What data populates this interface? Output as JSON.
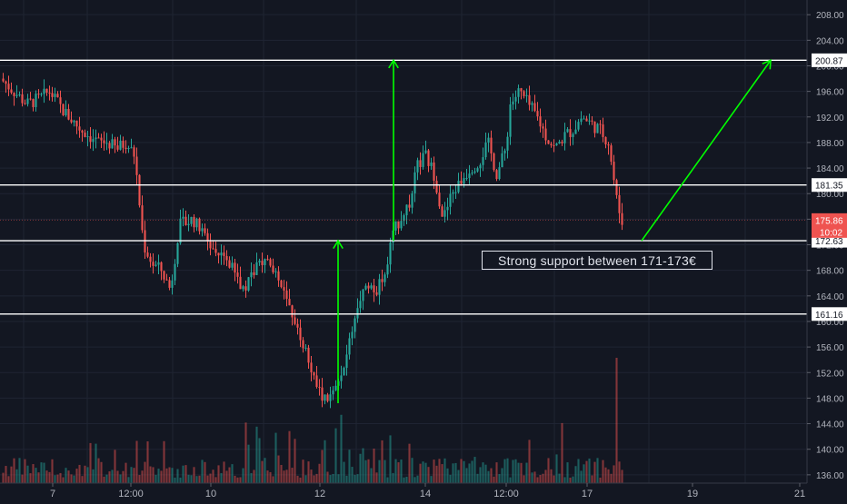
{
  "chart_data": {
    "type": "candlestick",
    "instrument_price_axis": {
      "ticks": [
        136,
        140,
        144,
        148,
        152,
        156,
        160,
        164,
        168,
        172,
        176,
        180,
        184,
        188,
        192,
        196,
        200,
        204,
        208
      ],
      "range": [
        134.7,
        210.3
      ]
    },
    "x_ticks": [
      "7",
      "12:00",
      "10",
      "12",
      "14",
      "12:00",
      "17",
      "19",
      "21"
    ],
    "horizontal_levels": [
      200.87,
      181.35,
      172.63,
      161.16
    ],
    "last_price": 175.86,
    "countdown": "10:02",
    "annotation": "Strong support between 171-173€",
    "colors": {
      "up": "#26a69a",
      "down": "#ef5350",
      "bg": "#131722",
      "level_line": "#ffffff",
      "arrow": "#00ff00",
      "price_tag": "#ef5350"
    },
    "price_path": [
      [
        0,
        198
      ],
      [
        3,
        196
      ],
      [
        6,
        194
      ],
      [
        9,
        195
      ],
      [
        11,
        196
      ],
      [
        14,
        193
      ],
      [
        18,
        190
      ],
      [
        20,
        189
      ],
      [
        22,
        188
      ],
      [
        24,
        188
      ],
      [
        26,
        187
      ],
      [
        28,
        188
      ],
      [
        30,
        186
      ],
      [
        32,
        172
      ],
      [
        34,
        169
      ],
      [
        36,
        168
      ],
      [
        38,
        165
      ],
      [
        40,
        175
      ],
      [
        43,
        176
      ],
      [
        46,
        173
      ],
      [
        49,
        170
      ],
      [
        52,
        168
      ],
      [
        54,
        165
      ],
      [
        56,
        167
      ],
      [
        58,
        169
      ],
      [
        60,
        170
      ],
      [
        62,
        167
      ],
      [
        64,
        163
      ],
      [
        66,
        160
      ],
      [
        68,
        156
      ],
      [
        70,
        151
      ],
      [
        72,
        148
      ],
      [
        74,
        148
      ],
      [
        76,
        151
      ],
      [
        78,
        157
      ],
      [
        80,
        163
      ],
      [
        82,
        166
      ],
      [
        84,
        165
      ],
      [
        86,
        168
      ],
      [
        88,
        174
      ],
      [
        90,
        177
      ],
      [
        92,
        179
      ],
      [
        93,
        184
      ],
      [
        95,
        186
      ],
      [
        97,
        183
      ],
      [
        99,
        176
      ],
      [
        101,
        180
      ],
      [
        103,
        182
      ],
      [
        105,
        184
      ],
      [
        107,
        185
      ],
      [
        109,
        188
      ],
      [
        111,
        183
      ],
      [
        113,
        187
      ],
      [
        114,
        194
      ],
      [
        116,
        196
      ],
      [
        118,
        194
      ],
      [
        120,
        192
      ],
      [
        122,
        189
      ],
      [
        124,
        187
      ],
      [
        126,
        189
      ],
      [
        128,
        190
      ],
      [
        130,
        192
      ],
      [
        132,
        191
      ],
      [
        134,
        190
      ],
      [
        136,
        188
      ],
      [
        137,
        183
      ],
      [
        138,
        178
      ],
      [
        139,
        175.86
      ]
    ]
  }
}
